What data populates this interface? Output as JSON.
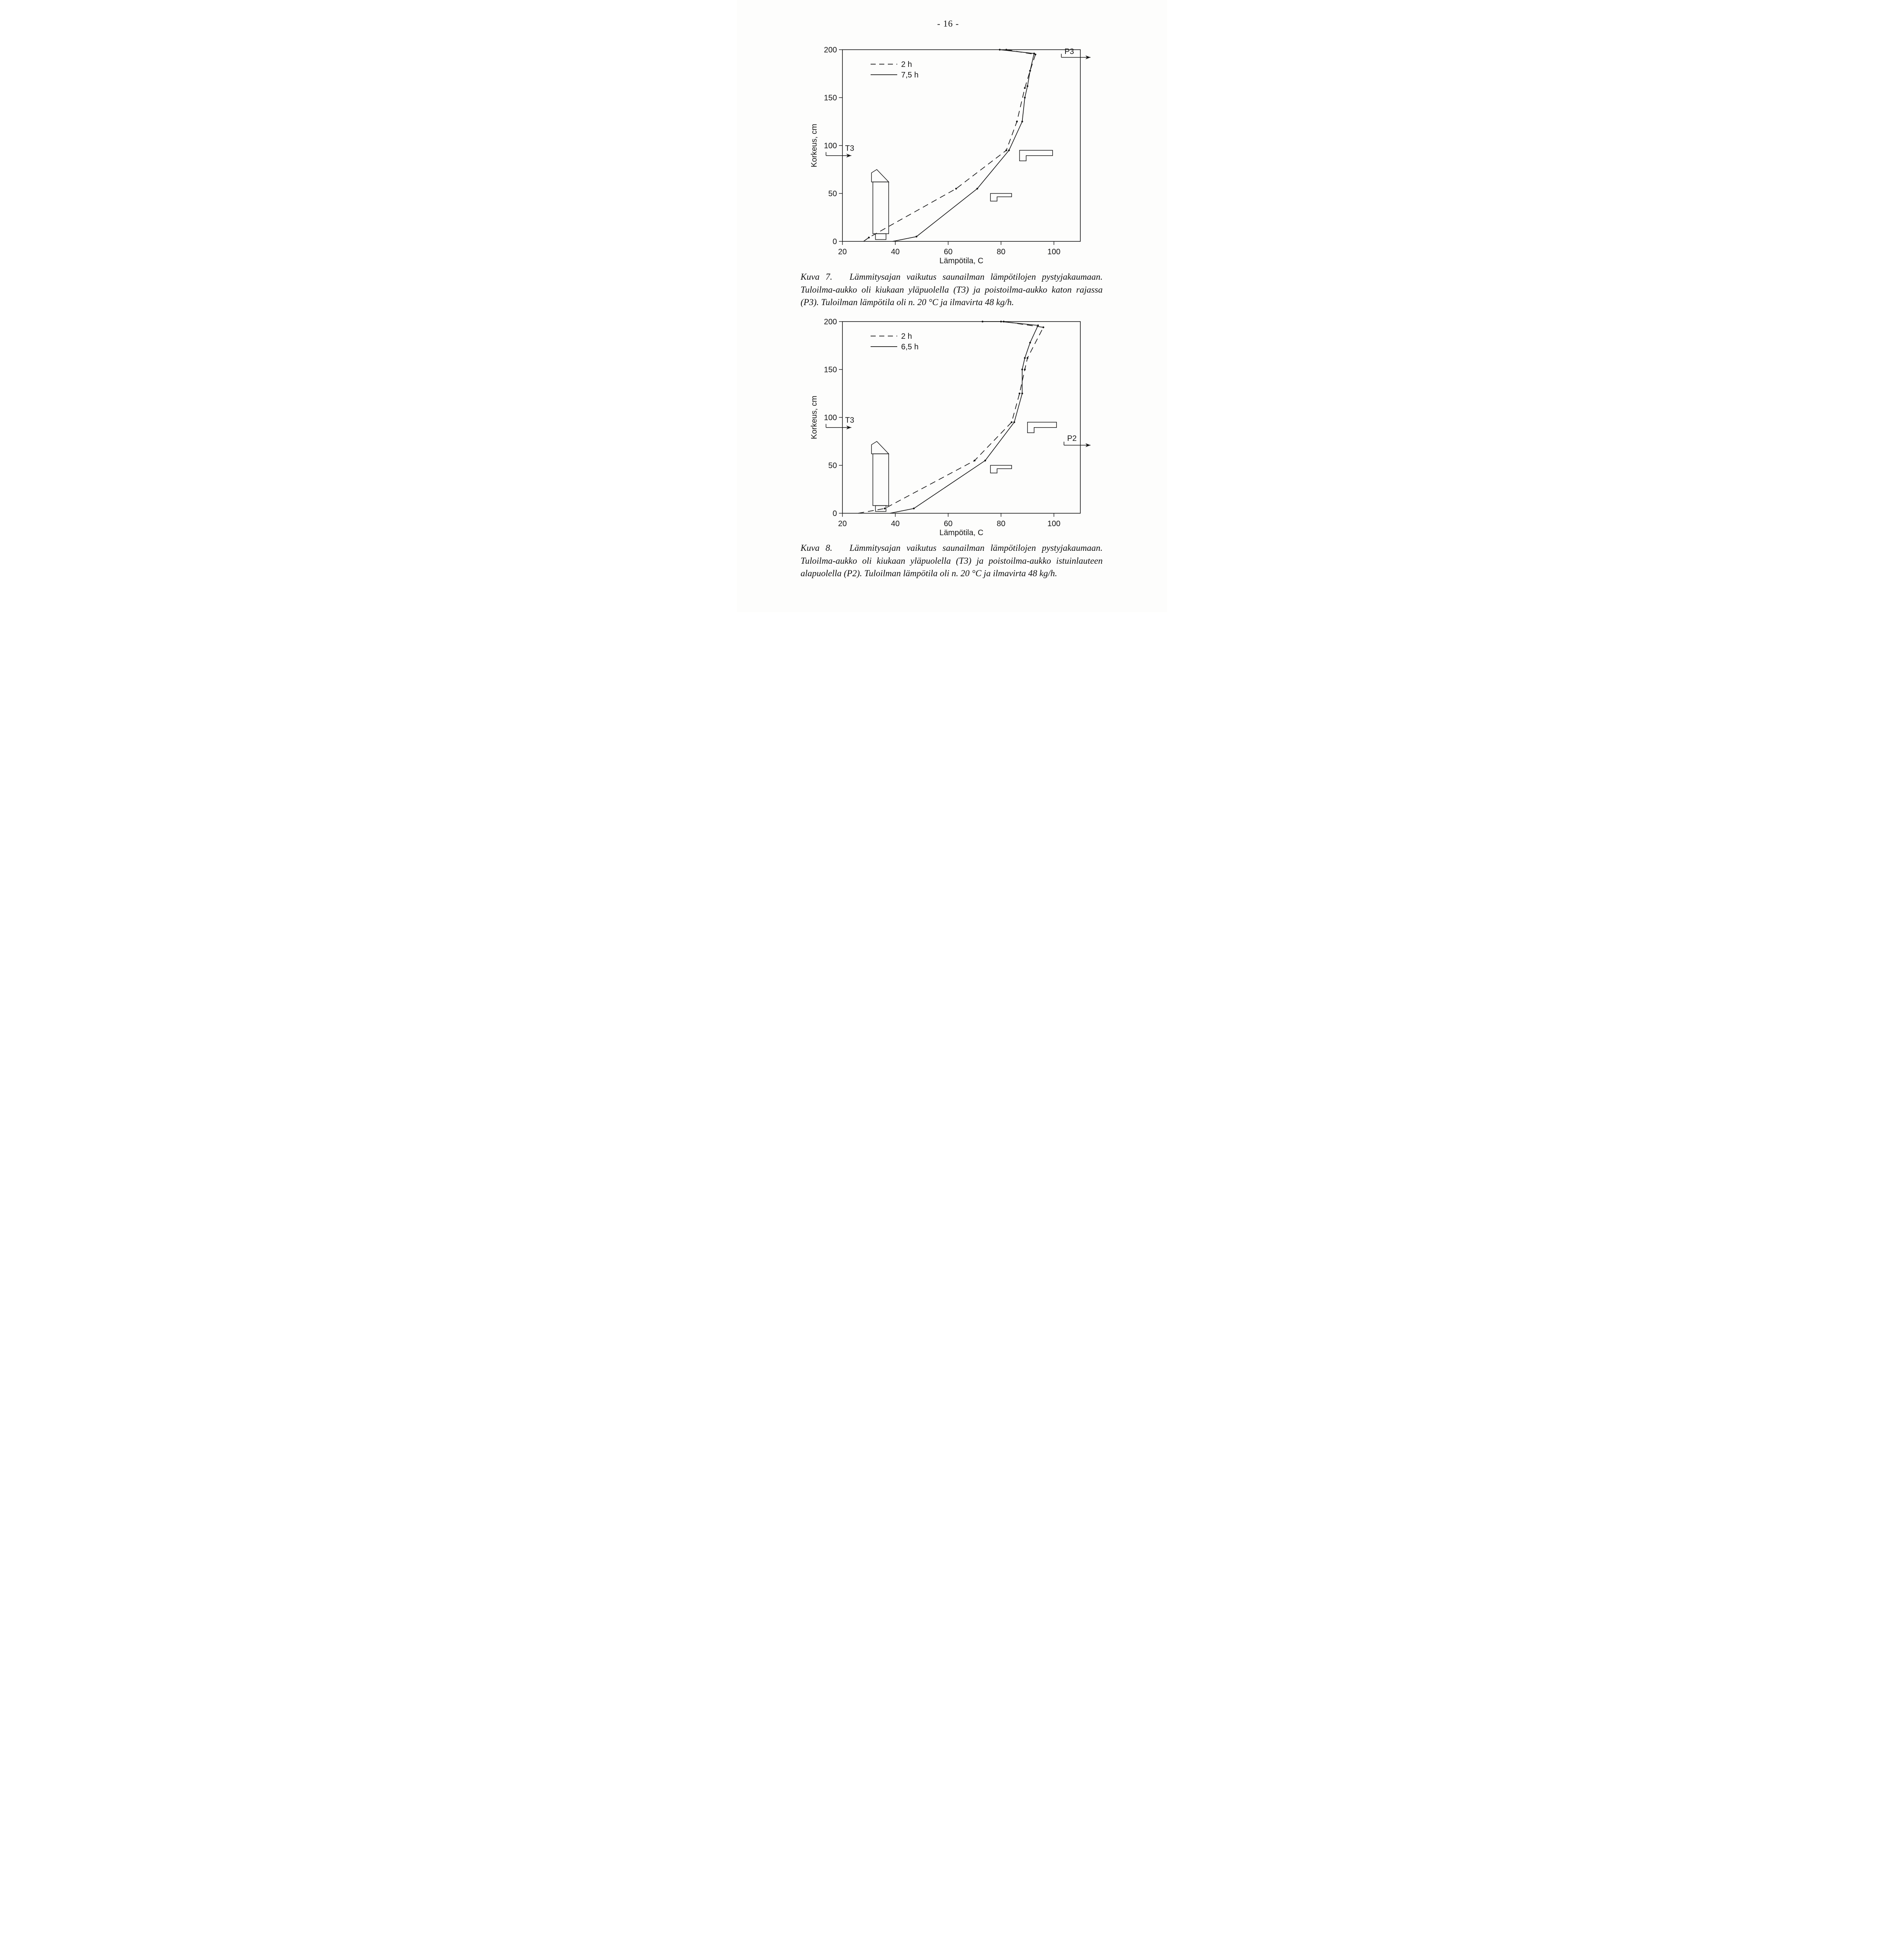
{
  "page": {
    "number_label": "- 16 -"
  },
  "figure1": {
    "caption_label": "Kuva 7.",
    "caption_text": "Lämmitysajan vaikutus saunailman lämpötilojen pystyjakaumaan. Tuloilma-aukko oli kiukaan yläpuolella (T3) ja poistoilma-aukko katon rajassa (P3). Tuloilman lämpötila oli n. 20 °C ja ilmavirta 48 kg/h."
  },
  "figure2": {
    "caption_label": "Kuva 8.",
    "caption_text": "Lämmitysajan vaikutus saunailman lämpötilojen pystyjakaumaan. Tuloilma-aukko oli kiukaan yläpuolella (T3) ja poistoilma-aukko istuinlauteen alapuolella (P2). Tuloilman lämpötila oli n. 20 °C ja ilmavirta 48 kg/h."
  },
  "chart_data": [
    {
      "type": "line",
      "title": "",
      "xlabel": "Lämpötila, C",
      "ylabel": "Korkeus, cm",
      "xlim": [
        20,
        110
      ],
      "ylim": [
        0,
        200
      ],
      "xticks": [
        20,
        40,
        60,
        80,
        100
      ],
      "yticks": [
        0,
        50,
        100,
        150,
        200
      ],
      "grid": false,
      "legend_position": "top-left-inside",
      "series": [
        {
          "name": "2 h",
          "style": "dashed",
          "points": [
            [
              28,
              0
            ],
            [
              30,
              4
            ],
            [
              63,
              55
            ],
            [
              82,
              95
            ],
            [
              86,
              125
            ],
            [
              89,
              160
            ],
            [
              91,
              178
            ],
            [
              93,
              195
            ],
            [
              82,
              200
            ]
          ]
        },
        {
          "name": "7,5 h",
          "style": "solid",
          "points": [
            [
              39,
              0
            ],
            [
              48,
              5
            ],
            [
              71,
              55
            ],
            [
              83,
              95
            ],
            [
              88,
              125
            ],
            [
              89,
              150
            ],
            [
              90,
              162
            ],
            [
              91,
              178
            ],
            [
              92.5,
              196
            ],
            [
              79.5,
              200
            ]
          ]
        }
      ],
      "annotations": [
        {
          "label": "P3",
          "x": 104,
          "y": 198,
          "arrow_y": 192,
          "side": "right"
        },
        {
          "label": "T3",
          "x": 21,
          "y": 97,
          "arrow_y": 89.5,
          "side": "left"
        }
      ]
    },
    {
      "type": "line",
      "title": "",
      "xlabel": "Lämpötila, C",
      "ylabel": "Korkeus, cm",
      "xlim": [
        20,
        110
      ],
      "ylim": [
        0,
        200
      ],
      "xticks": [
        20,
        40,
        60,
        80,
        100
      ],
      "yticks": [
        0,
        50,
        100,
        150,
        200
      ],
      "grid": false,
      "legend_position": "top-left-inside",
      "series": [
        {
          "name": "2 h",
          "style": "dashed",
          "points": [
            [
              26,
              0
            ],
            [
              36,
              5
            ],
            [
              70,
              55
            ],
            [
              84,
              95
            ],
            [
              87,
              125
            ],
            [
              89,
              150
            ],
            [
              90,
              162
            ],
            [
              96,
              194
            ],
            [
              81,
              200
            ]
          ]
        },
        {
          "name": "6,5 h",
          "style": "solid",
          "points": [
            [
              38,
              0
            ],
            [
              47,
              5
            ],
            [
              74,
              55
            ],
            [
              85,
              95
            ],
            [
              88,
              125
            ],
            [
              88,
              150
            ],
            [
              89,
              162
            ],
            [
              91,
              178
            ],
            [
              94,
              196
            ],
            [
              80,
              200
            ],
            [
              73,
              200
            ]
          ]
        }
      ],
      "annotations": [
        {
          "label": "T3",
          "x": 21,
          "y": 97,
          "arrow_y": 89.5,
          "side": "left"
        },
        {
          "label": "P2",
          "x": 105,
          "y": 78,
          "arrow_y": 71,
          "side": "right"
        }
      ]
    }
  ]
}
